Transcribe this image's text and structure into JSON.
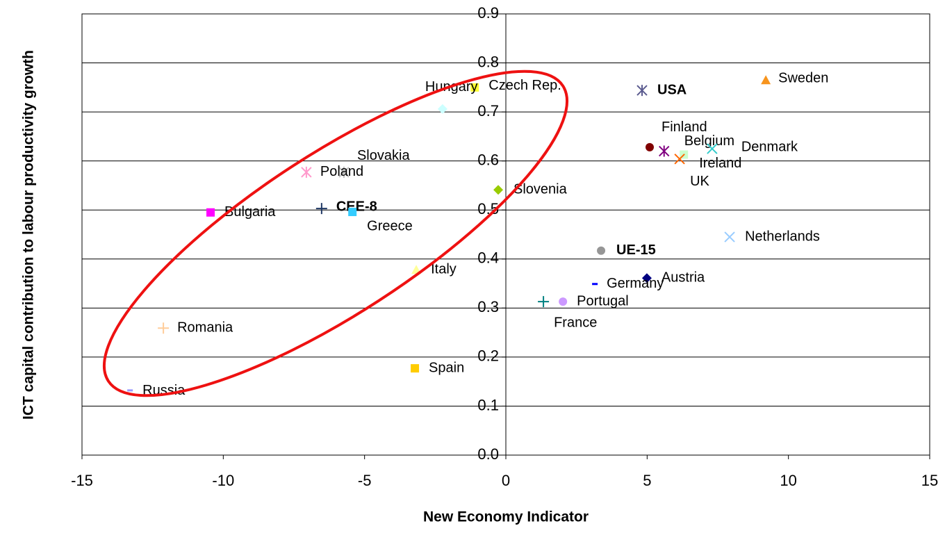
{
  "chart_data": {
    "type": "scatter",
    "xlabel": "New Economy Indicator",
    "ylabel": "ICT capital contribution to labour productivity growth",
    "xlim": [
      -15,
      15
    ],
    "xticks": [
      -15,
      -10,
      -5,
      0,
      5,
      10,
      15
    ],
    "ylim": [
      0,
      0.9
    ],
    "yticks": [
      {
        "value": 0,
        "label": "0.0"
      },
      0.1,
      0.2,
      0.3,
      0.4,
      0.5,
      0.6,
      0.7,
      0.8,
      0.9
    ],
    "grid": true,
    "series": [
      {
        "name": "Sweden",
        "color": "#f7941d",
        "marker": "triangle",
        "x": [
          9.2
        ],
        "values": [
          0.765
        ]
      },
      {
        "name": "USA",
        "color": "#5b5b8f",
        "marker": "asterisk",
        "bold": true,
        "x": [
          4.82
        ],
        "values": [
          0.744
        ]
      },
      {
        "name": "Czech Rep.",
        "color": "#ffff33",
        "marker": "square",
        "x": [
          -1.1
        ],
        "values": [
          0.75
        ]
      },
      {
        "name": "Hungary",
        "color": "#ccffff",
        "marker": "diamond",
        "x": [
          -2.24
        ],
        "values": [
          0.706
        ]
      },
      {
        "name": "Finland",
        "color": "#800000",
        "marker": "circle",
        "x": [
          5.09
        ],
        "values": [
          0.628
        ]
      },
      {
        "name": "Belgium",
        "color": "#800080",
        "marker": "asterisk",
        "x": [
          5.6
        ],
        "values": [
          0.62
        ]
      },
      {
        "name": "Ireland",
        "color": "#ccffcc",
        "marker": "square",
        "x": [
          6.3
        ],
        "values": [
          0.613
        ]
      },
      {
        "name": "UK",
        "color": "#ff6600",
        "marker": "x",
        "x": [
          6.15
        ],
        "values": [
          0.604
        ]
      },
      {
        "name": "Denmark",
        "color": "#33cccc",
        "marker": "x",
        "x": [
          7.3
        ],
        "values": [
          0.625
        ]
      },
      {
        "name": "Slovakia",
        "color": "#c0c0c0",
        "marker": "asterisk",
        "x": [
          -5.73
        ],
        "values": [
          0.577
        ]
      },
      {
        "name": "Poland",
        "color": "#ff99cc",
        "marker": "asterisk",
        "x": [
          -7.06
        ],
        "values": [
          0.577
        ]
      },
      {
        "name": "Slovenia",
        "color": "#99cc00",
        "marker": "diamond",
        "x": [
          -0.27
        ],
        "values": [
          0.541
        ]
      },
      {
        "name": "Bulgaria",
        "color": "#ff00ff",
        "marker": "square",
        "x": [
          -10.45
        ],
        "values": [
          0.495
        ]
      },
      {
        "name": "CEE-8",
        "color": "#1f3864",
        "marker": "plus",
        "bold": true,
        "x": [
          -6.52
        ],
        "values": [
          0.503
        ]
      },
      {
        "name": "Greece",
        "color": "#33ccff",
        "marker": "square",
        "x": [
          -5.43
        ],
        "values": [
          0.496
        ]
      },
      {
        "name": "Netherlands",
        "color": "#99ccff",
        "marker": "x",
        "x": [
          7.92
        ],
        "values": [
          0.445
        ]
      },
      {
        "name": "UE-15",
        "color": "#969696",
        "marker": "circle",
        "bold": true,
        "x": [
          3.37
        ],
        "values": [
          0.417
        ]
      },
      {
        "name": "Italy",
        "color": "#ffff99",
        "marker": "triangle",
        "x": [
          -3.17
        ],
        "values": [
          0.378
        ]
      },
      {
        "name": "Austria",
        "color": "#000080",
        "marker": "diamond",
        "x": [
          4.99
        ],
        "values": [
          0.361
        ]
      },
      {
        "name": "Germany",
        "color": "#0000ff",
        "marker": "dash",
        "x": [
          3.15
        ],
        "values": [
          0.349
        ]
      },
      {
        "name": "France",
        "color": "#008080",
        "marker": "plus",
        "x": [
          1.33
        ],
        "values": [
          0.313
        ]
      },
      {
        "name": "Portugal",
        "color": "#cc99ff",
        "marker": "circle",
        "x": [
          2.02
        ],
        "values": [
          0.313
        ]
      },
      {
        "name": "Romania",
        "color": "#ffcc99",
        "marker": "plus",
        "x": [
          -12.12
        ],
        "values": [
          0.259
        ]
      },
      {
        "name": "Spain",
        "color": "#ffcc00",
        "marker": "square",
        "x": [
          -3.22
        ],
        "values": [
          0.177
        ]
      },
      {
        "name": "Russia",
        "color": "#9999ff",
        "marker": "dash",
        "x": [
          -13.3
        ],
        "values": [
          0.132
        ]
      }
    ]
  }
}
